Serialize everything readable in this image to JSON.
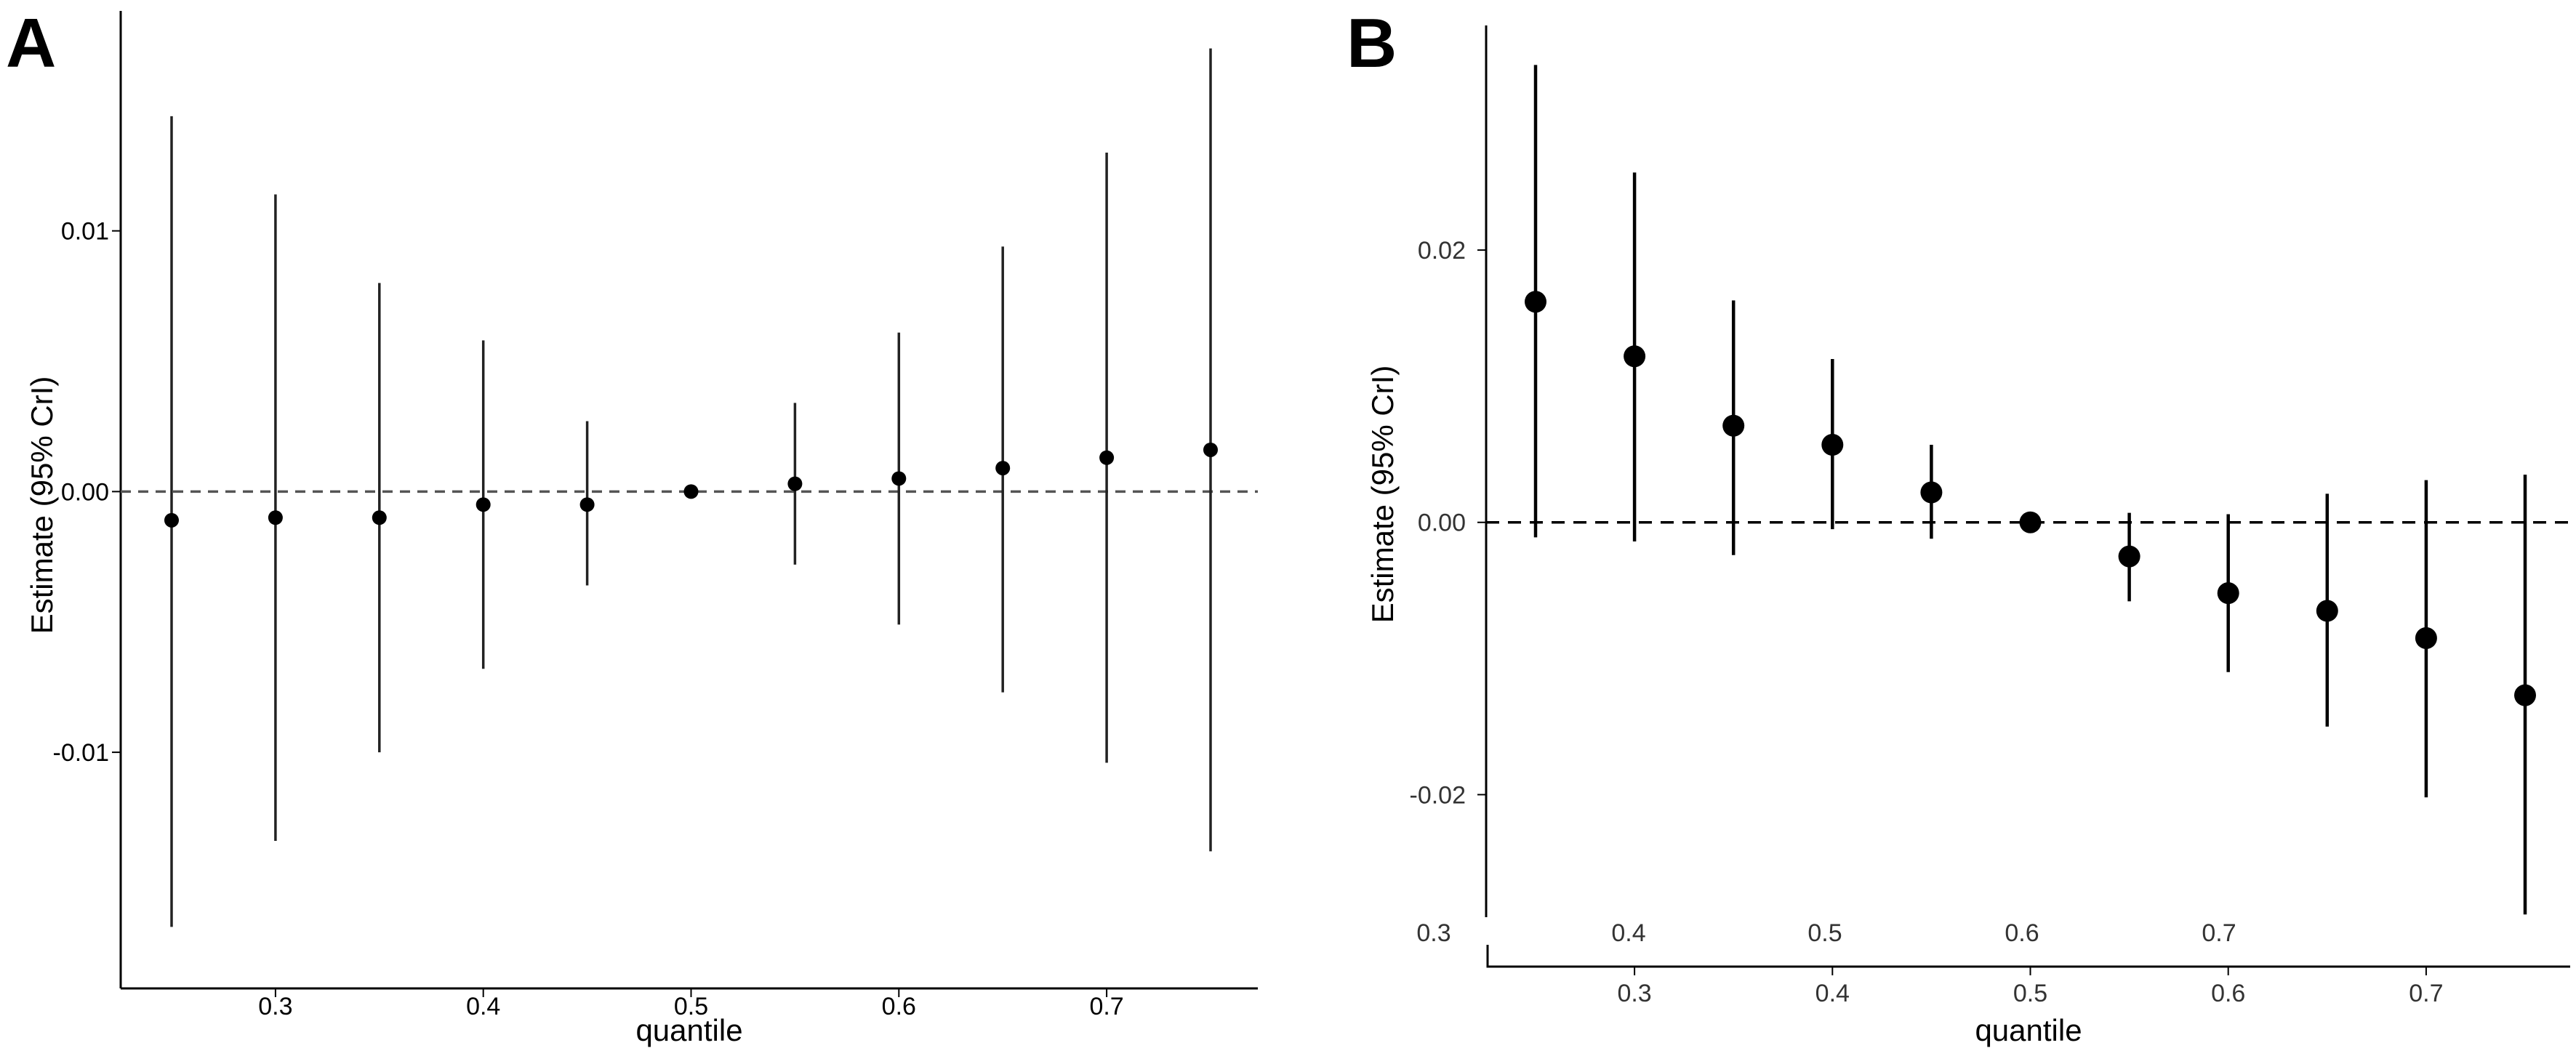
{
  "chart_data": [
    {
      "panel": "A",
      "type": "scatter",
      "xlabel": "quantile",
      "ylabel": "Estimate (95% CrI)",
      "xlim": [
        0.225,
        0.775
      ],
      "ylim": [
        -0.0185,
        0.0188
      ],
      "x_ticks": [
        0.3,
        0.4,
        0.5,
        0.6,
        0.7
      ],
      "x_tick_labels": [
        "0.3",
        "0.4",
        "0.5",
        "0.6",
        "0.7"
      ],
      "y_ticks": [
        0.01,
        0.0,
        -0.01
      ],
      "y_tick_labels": [
        "0.01",
        "0.00",
        "-0.01"
      ],
      "reference_line": 0.0,
      "grid": false,
      "x": [
        0.25,
        0.3,
        0.35,
        0.4,
        0.45,
        0.5,
        0.55,
        0.6,
        0.65,
        0.7,
        0.75
      ],
      "estimate": [
        -0.0011,
        -0.001,
        -0.001,
        -0.0005,
        -0.0005,
        0.0,
        0.0003,
        0.0005,
        0.0009,
        0.0013,
        0.0016
      ],
      "lower": [
        -0.0167,
        -0.0134,
        -0.01,
        -0.0068,
        -0.0036,
        0.0,
        -0.0028,
        -0.0051,
        -0.0077,
        -0.0104,
        -0.0138
      ],
      "upper": [
        0.0144,
        0.0114,
        0.008,
        0.0058,
        0.0027,
        0.0,
        0.0034,
        0.0061,
        0.0094,
        0.013,
        0.017
      ],
      "color": "#000000"
    },
    {
      "panel": "B",
      "type": "scatter",
      "xlabel": "quantile",
      "ylabel": "Estimate (95% CrI)",
      "xlim": [
        0.225,
        0.775
      ],
      "ylim": [
        -0.029,
        0.0365
      ],
      "x_ticks": [
        0.3,
        0.4,
        0.5,
        0.6,
        0.7
      ],
      "x_tick_labels": [
        "0.3",
        "0.4",
        "0.5",
        "0.6",
        "0.7"
      ],
      "secondary_x_labels": [
        "0.3",
        "0.4",
        "0.5",
        "0.6",
        "0.7"
      ],
      "y_ticks": [
        0.02,
        0.0,
        -0.02
      ],
      "y_tick_labels": [
        "0.02",
        "0.00",
        "-0.02"
      ],
      "reference_line": 0.0,
      "grid": false,
      "x": [
        0.25,
        0.3,
        0.35,
        0.4,
        0.45,
        0.5,
        0.55,
        0.6,
        0.65,
        0.7,
        0.75
      ],
      "estimate": [
        0.0162,
        0.0122,
        0.0071,
        0.0057,
        0.0022,
        0.0,
        -0.0025,
        -0.0052,
        -0.0065,
        -0.0085,
        -0.0127
      ],
      "lower": [
        -0.0011,
        -0.0014,
        -0.0024,
        -0.0005,
        -0.0012,
        0.0,
        -0.0058,
        -0.011,
        -0.015,
        -0.0202,
        -0.0288
      ],
      "upper": [
        0.0336,
        0.0257,
        0.0163,
        0.012,
        0.0057,
        0.0,
        0.0007,
        0.0006,
        0.0021,
        0.0031,
        0.0035
      ],
      "color": "#000000"
    }
  ]
}
